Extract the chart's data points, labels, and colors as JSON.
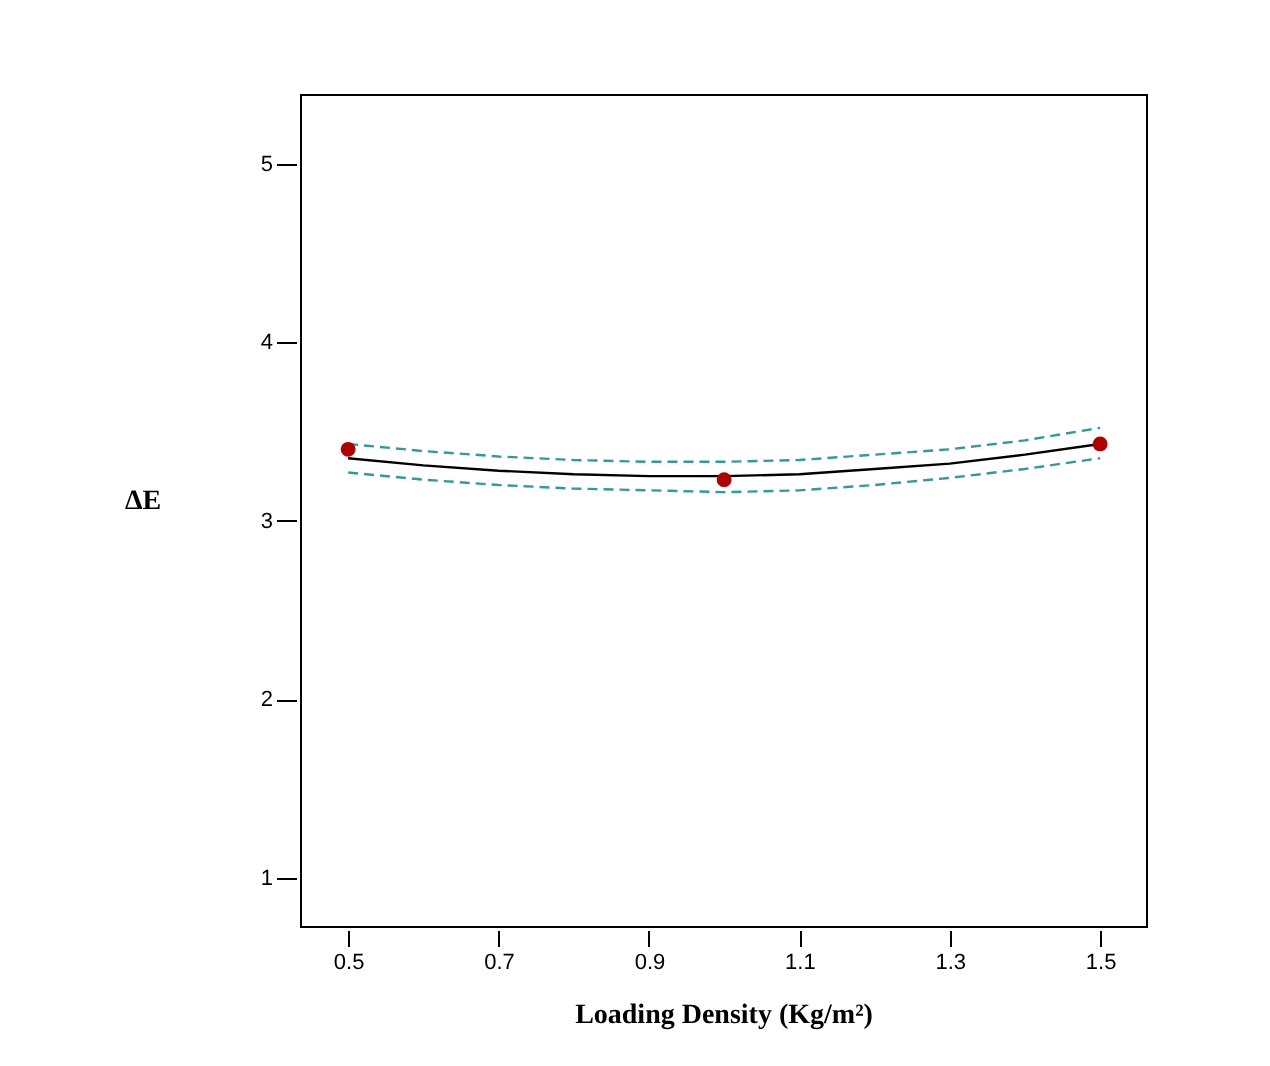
{
  "chart_data": {
    "type": "line",
    "xlabel": "Loading Density (Kg/m²)",
    "ylabel": "ΔE",
    "xlim": [
      0.436,
      1.561
    ],
    "ylim": [
      0.73,
      5.39
    ],
    "xticks": [
      0.5,
      0.7,
      0.9,
      1.1,
      1.3,
      1.5
    ],
    "yticks": [
      1,
      2,
      3,
      4,
      5
    ],
    "grid": false,
    "x": [
      0.5,
      0.6,
      0.7,
      0.8,
      0.9,
      1.0,
      1.1,
      1.2,
      1.3,
      1.4,
      1.5
    ],
    "series": [
      {
        "color": "#000000",
        "line_style": "solid",
        "marker": "none",
        "values": [
          3.35,
          3.31,
          3.28,
          3.26,
          3.25,
          3.25,
          3.26,
          3.29,
          3.32,
          3.37,
          3.43
        ]
      },
      {
        "color": "#2e9c9c",
        "line_style": "dashed",
        "marker": "none",
        "values": [
          3.43,
          3.39,
          3.36,
          3.34,
          3.33,
          3.33,
          3.34,
          3.37,
          3.4,
          3.45,
          3.52
        ]
      },
      {
        "color": "#2e9c9c",
        "line_style": "dashed",
        "marker": "none",
        "values": [
          3.27,
          3.23,
          3.2,
          3.18,
          3.17,
          3.16,
          3.17,
          3.2,
          3.24,
          3.29,
          3.35
        ]
      },
      {
        "type": "scatter",
        "color": "#b00000",
        "marker": "circle",
        "x": [
          0.5,
          1.0,
          1.5
        ],
        "values": [
          3.4,
          3.23,
          3.43
        ]
      }
    ]
  }
}
